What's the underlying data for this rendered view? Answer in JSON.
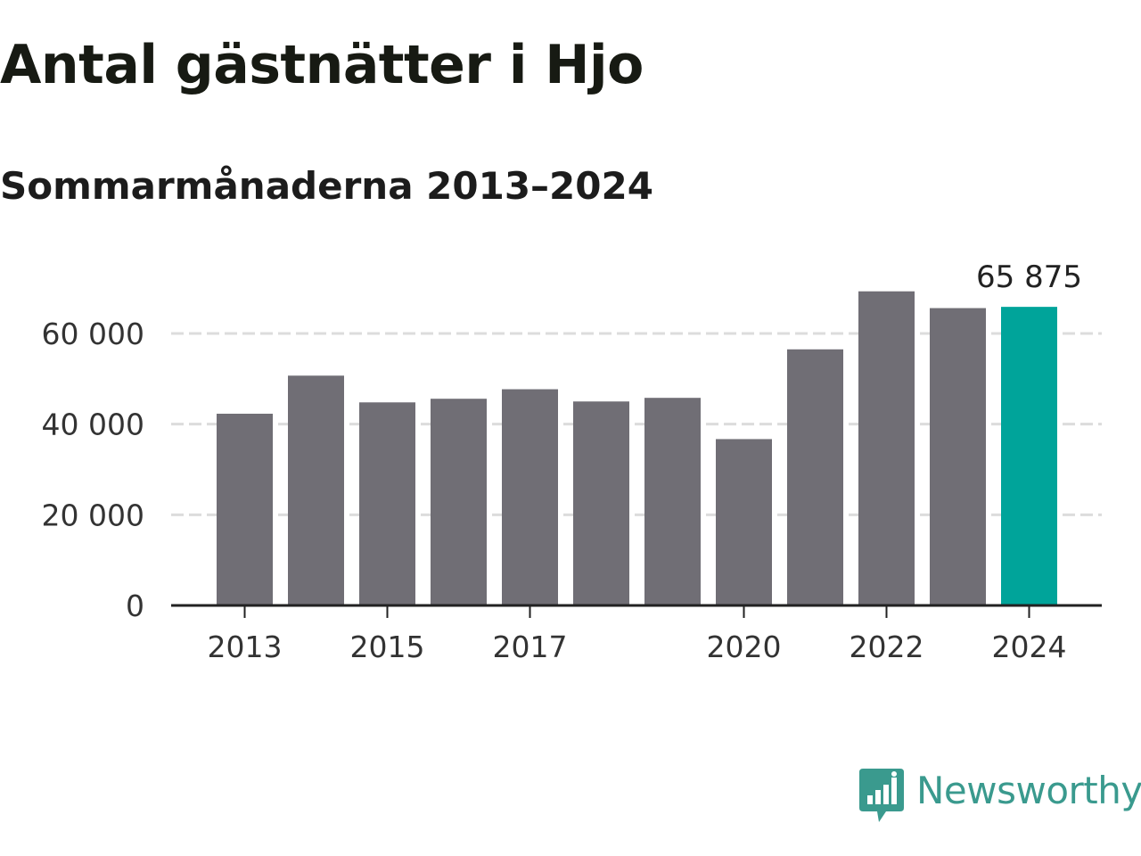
{
  "chart_data": {
    "type": "bar",
    "title": "Antal gästnätter i Hjo",
    "subtitle": "Sommarmånaderna 2013–2024",
    "categories": [
      2013,
      2014,
      2015,
      2016,
      2017,
      2018,
      2019,
      2020,
      2021,
      2022,
      2023,
      2024
    ],
    "values": [
      42300,
      50700,
      44800,
      45600,
      47700,
      45000,
      45800,
      36700,
      56500,
      69300,
      65600,
      65875
    ],
    "x_tick_labels": [
      "2013",
      "2015",
      "2017",
      "2020",
      "2022",
      "2024"
    ],
    "y_ticks": [
      0,
      20000,
      40000,
      60000
    ],
    "y_tick_labels": [
      "0",
      "20 000",
      "40 000",
      "60 000"
    ],
    "ylim": [
      0,
      70000
    ],
    "highlight_category": 2024,
    "highlight_label": "65 875",
    "grid": "horizontal dashed",
    "colors": {
      "bar": "#706e75",
      "highlight": "#00a49a",
      "gridline": "#dcdcdc",
      "axis": "#222222"
    }
  },
  "brand": {
    "name": "Newsworthy",
    "icon": "newsworthy-logo-icon",
    "color": "#3a9a8e"
  }
}
